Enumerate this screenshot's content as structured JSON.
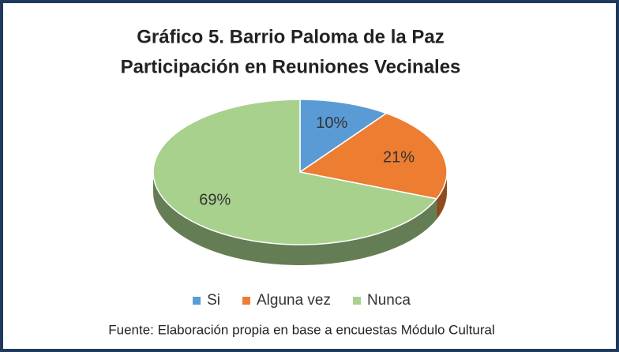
{
  "chart_data": {
    "type": "pie",
    "title": "Gráfico 5.  Barrio Paloma de la Paz",
    "subtitle": "Participación en Reuniones  Vecinales",
    "categories": [
      "Si",
      "Alguna vez",
      "Nunca"
    ],
    "values": [
      10,
      21,
      69
    ],
    "value_labels": [
      "10%",
      "21%",
      "69%"
    ],
    "colors": [
      "#5b9bd5",
      "#ed7d31",
      "#a9d18e"
    ],
    "legend": "bottom",
    "source": "Fuente: Elaboración propia en base a encuestas  Módulo Cultural"
  }
}
